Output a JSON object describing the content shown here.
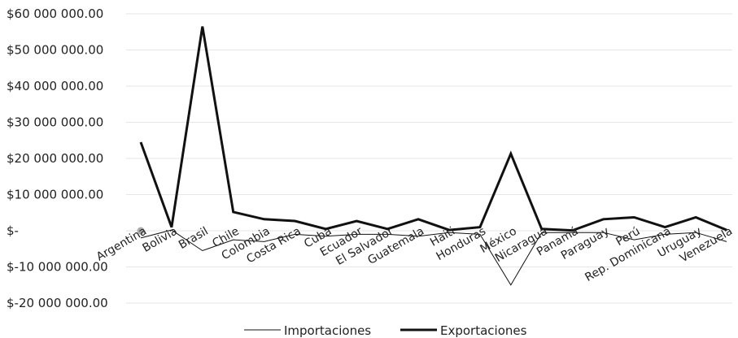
{
  "chart_data": {
    "type": "line",
    "categories": [
      "Argentina",
      "Bolivia",
      "Brasil",
      "Chile",
      "Colombia",
      "Costa Rica",
      "Cuba",
      "Ecuador",
      "El Salvador",
      "Guatemala",
      "Haiti",
      "Honduras",
      "México",
      "Nicaragua",
      "Panamá",
      "Paraguay",
      "Perú",
      "Rep. Dominicana",
      "Uruguay",
      "Venezuela"
    ],
    "y_tick_labels": [
      "$60 000 000.00",
      "$50 000 000.00",
      "$40 000 000.00",
      "$30 000 000.00",
      "$20 000 000.00",
      "$10 000 000.00",
      "$-",
      "$-10 000 000.00",
      "$-20 000 000.00"
    ],
    "y_ticks": [
      60000000,
      50000000,
      40000000,
      30000000,
      20000000,
      10000000,
      0,
      -10000000,
      -20000000
    ],
    "ylim": [
      -20000000,
      60000000
    ],
    "grid": "horizontal",
    "legend_position": "bottom",
    "series": [
      {
        "name": "Importaciones",
        "style": "thin",
        "color": "#111111",
        "values": [
          -2000000,
          200000,
          -5500000,
          -2500000,
          -3000000,
          -1000000,
          -1500000,
          -1000000,
          -1000000,
          -1500000,
          -500000,
          -1000000,
          -15000000,
          -500000,
          -500000,
          -500000,
          -2500000,
          -1000000,
          -500000,
          -3000000
        ]
      },
      {
        "name": "Exportaciones",
        "style": "thick",
        "color": "#111111",
        "values": [
          24500000,
          1000000,
          56500000,
          5200000,
          3200000,
          2700000,
          500000,
          2700000,
          500000,
          3200000,
          200000,
          1000000,
          21300000,
          500000,
          100000,
          3200000,
          3700000,
          1000000,
          3700000,
          200000
        ]
      }
    ],
    "marker": {
      "category": "Argentina",
      "value": 0,
      "color": "#aaaaaa"
    }
  }
}
